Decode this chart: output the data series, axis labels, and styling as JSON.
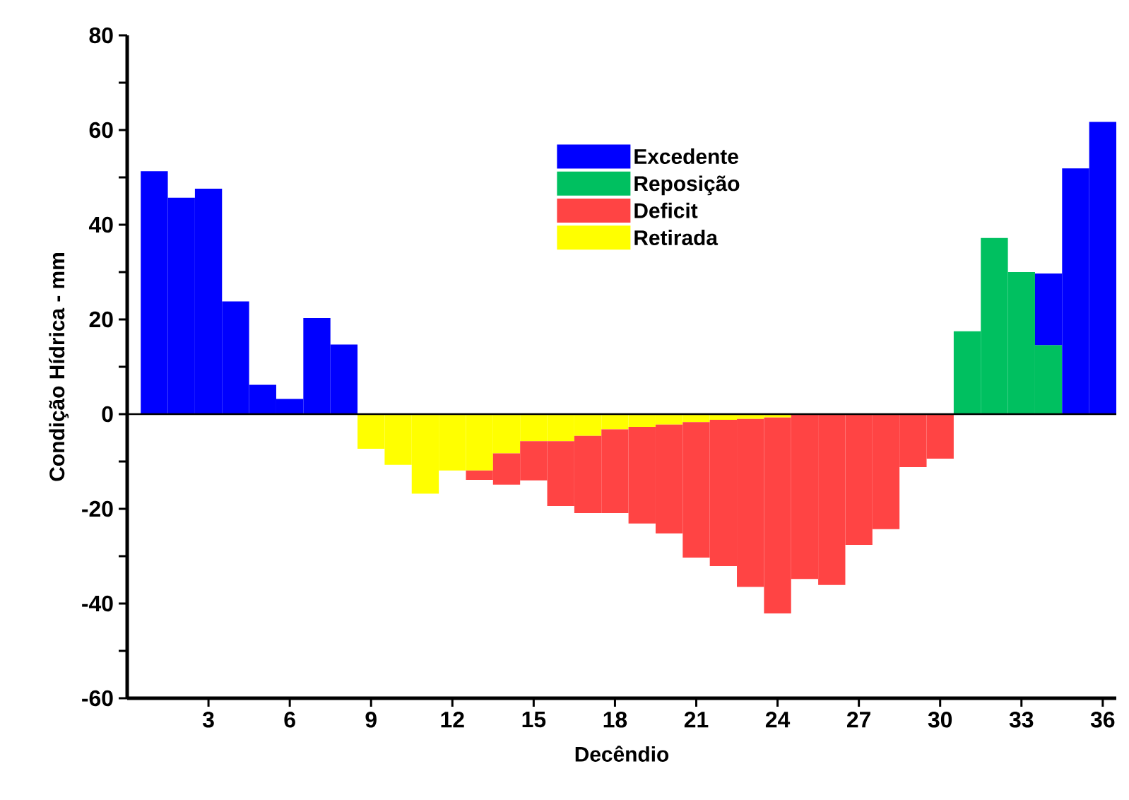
{
  "chart_data": {
    "type": "bar",
    "stacked": true,
    "xlabel": "Decêndio",
    "ylabel": "Condição Hídrica - mm",
    "x": [
      1,
      2,
      3,
      4,
      5,
      6,
      7,
      8,
      9,
      10,
      11,
      12,
      13,
      14,
      15,
      16,
      17,
      18,
      19,
      20,
      21,
      22,
      23,
      24,
      25,
      26,
      27,
      28,
      29,
      30,
      31,
      32,
      33,
      34,
      35,
      36
    ],
    "series": [
      {
        "name": "Retirada",
        "color": "#ffff00",
        "values": [
          null,
          null,
          null,
          null,
          null,
          null,
          null,
          null,
          -7.3,
          -10.7,
          -16.8,
          -11.9,
          -11.9,
          -8.3,
          -5.7,
          -5.7,
          -4.6,
          -3.2,
          -2.7,
          -2.2,
          -1.7,
          -1.2,
          -1.0,
          -0.7,
          null,
          null,
          null,
          null,
          null,
          null,
          null,
          null,
          null,
          null,
          null,
          null
        ]
      },
      {
        "name": "Deficit",
        "color": "#ff4444",
        "values": [
          null,
          null,
          null,
          null,
          null,
          null,
          null,
          null,
          null,
          null,
          null,
          null,
          -2.0,
          -6.6,
          -8.3,
          -13.7,
          -16.3,
          -17.7,
          -20.4,
          -23.0,
          -28.6,
          -30.9,
          -35.5,
          -41.4,
          -34.8,
          -36.1,
          -27.6,
          -24.3,
          -11.2,
          -9.4,
          null,
          null,
          null,
          null,
          null,
          null
        ]
      },
      {
        "name": "Reposição",
        "color": "#00c060",
        "values": [
          null,
          null,
          null,
          null,
          null,
          null,
          null,
          null,
          null,
          null,
          null,
          null,
          null,
          null,
          null,
          null,
          null,
          null,
          null,
          null,
          null,
          null,
          null,
          null,
          null,
          null,
          null,
          null,
          null,
          null,
          17.5,
          37.2,
          30.0,
          14.6,
          null,
          null
        ]
      },
      {
        "name": "Excedente",
        "color": "#0000ff",
        "values": [
          51.3,
          45.7,
          47.6,
          23.8,
          6.2,
          3.2,
          20.3,
          14.7,
          null,
          null,
          null,
          null,
          null,
          null,
          null,
          null,
          null,
          null,
          null,
          null,
          null,
          null,
          null,
          null,
          null,
          null,
          null,
          null,
          null,
          null,
          null,
          null,
          null,
          15.1,
          51.9,
          61.7
        ]
      }
    ],
    "xlim": [
      0,
      36.5
    ],
    "xticks": [
      3,
      6,
      9,
      12,
      15,
      18,
      21,
      24,
      27,
      30,
      33,
      36
    ],
    "ylim": [
      -60,
      80
    ],
    "yticks": [
      -60,
      {
        "value": -50,
        "label": null
      },
      -40,
      {
        "value": -30,
        "label": null
      },
      -20,
      {
        "value": -10,
        "label": null
      },
      0,
      {
        "value": 10,
        "label": null
      },
      20,
      {
        "value": 30,
        "label": null
      },
      40,
      {
        "value": 50,
        "label": null
      },
      60,
      {
        "value": 70,
        "label": null
      },
      80
    ],
    "ref_lines": [
      {
        "axis": "y",
        "value": 0
      }
    ],
    "legend": "top"
  }
}
